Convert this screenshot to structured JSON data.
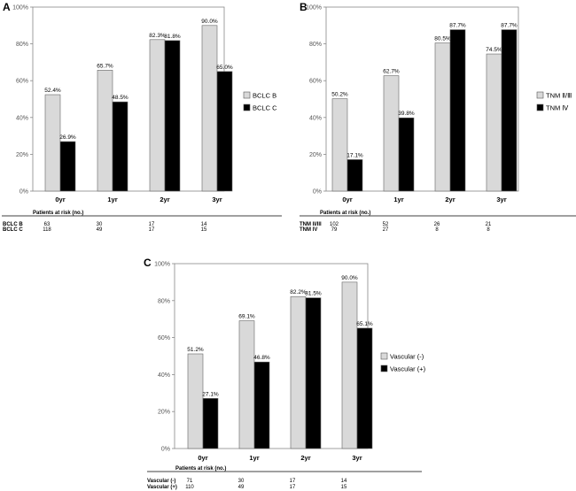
{
  "chart_data": [
    {
      "type": "bar",
      "panel": "A",
      "categories": [
        "0yr",
        "1yr",
        "2yr",
        "3yr"
      ],
      "ylim": [
        0,
        100
      ],
      "yticks": [
        "0%",
        "20%",
        "40%",
        "60%",
        "80%",
        "100%"
      ],
      "series": [
        {
          "name": "BCLC B",
          "values": [
            52.4,
            65.7,
            82.3,
            90.0
          ],
          "labels": [
            "52.4%",
            "65.7%",
            "82.3%",
            "90.0%"
          ],
          "color": "#d9d9d9"
        },
        {
          "name": "BCLC C",
          "values": [
            26.9,
            48.5,
            81.8,
            65.0
          ],
          "labels": [
            "26.9%",
            "48.5%",
            "81.8%",
            "65.0%"
          ],
          "color": "#000000"
        }
      ],
      "legend_position": "right",
      "risk_header": "Patients at risk (no.)",
      "risk_rows": [
        {
          "label": "BCLC  B",
          "values": [
            "63",
            "30",
            "17",
            "14"
          ]
        },
        {
          "label": "BCLC  C",
          "values": [
            "118",
            "49",
            "17",
            "15"
          ]
        }
      ]
    },
    {
      "type": "bar",
      "panel": "B",
      "categories": [
        "0yr",
        "1yr",
        "2yr",
        "3yr"
      ],
      "ylim": [
        0,
        100
      ],
      "yticks": [
        "0%",
        "20%",
        "40%",
        "60%",
        "80%",
        "100%"
      ],
      "series": [
        {
          "name": "TNM Ⅱ/Ⅲ",
          "values": [
            50.2,
            62.7,
            80.5,
            74.5
          ],
          "labels": [
            "50.2%",
            "62.7%",
            "80.5%",
            "74.5%"
          ],
          "color": "#d9d9d9"
        },
        {
          "name": "TNM Ⅳ",
          "values": [
            17.1,
            39.8,
            87.7,
            87.7
          ],
          "labels": [
            "17.1%",
            "39.8%",
            "87.7%",
            "87.7%"
          ],
          "color": "#000000"
        }
      ],
      "legend_position": "right",
      "risk_header": "Patients at risk (no.)",
      "risk_rows": [
        {
          "label": "TNM II/III",
          "values": [
            "102",
            "52",
            "26",
            "21"
          ]
        },
        {
          "label": "TNM IV",
          "values": [
            "79",
            "27",
            "8",
            "8"
          ]
        }
      ]
    },
    {
      "type": "bar",
      "panel": "C",
      "categories": [
        "0yr",
        "1yr",
        "2yr",
        "3yr"
      ],
      "ylim": [
        0,
        100
      ],
      "yticks": [
        "0%",
        "20%",
        "40%",
        "60%",
        "80%",
        "100%"
      ],
      "series": [
        {
          "name": "Vascular (-)",
          "values": [
            51.2,
            69.1,
            82.2,
            90.0
          ],
          "labels": [
            "51.2%",
            "69.1%",
            "82.2%",
            "90.0%"
          ],
          "color": "#d9d9d9"
        },
        {
          "name": "Vascular (+)",
          "values": [
            27.1,
            46.8,
            81.5,
            65.1
          ],
          "labels": [
            "27.1%",
            "46.8%",
            "81.5%",
            "65.1%"
          ],
          "color": "#000000"
        }
      ],
      "legend_position": "right",
      "risk_header": "Patients at risk (no.)",
      "risk_rows": [
        {
          "label": "Vascular (-)",
          "values": [
            "71",
            "30",
            "17",
            "14"
          ]
        },
        {
          "label": "Vascular (+)",
          "values": [
            "110",
            "49",
            "17",
            "15"
          ]
        }
      ]
    }
  ]
}
